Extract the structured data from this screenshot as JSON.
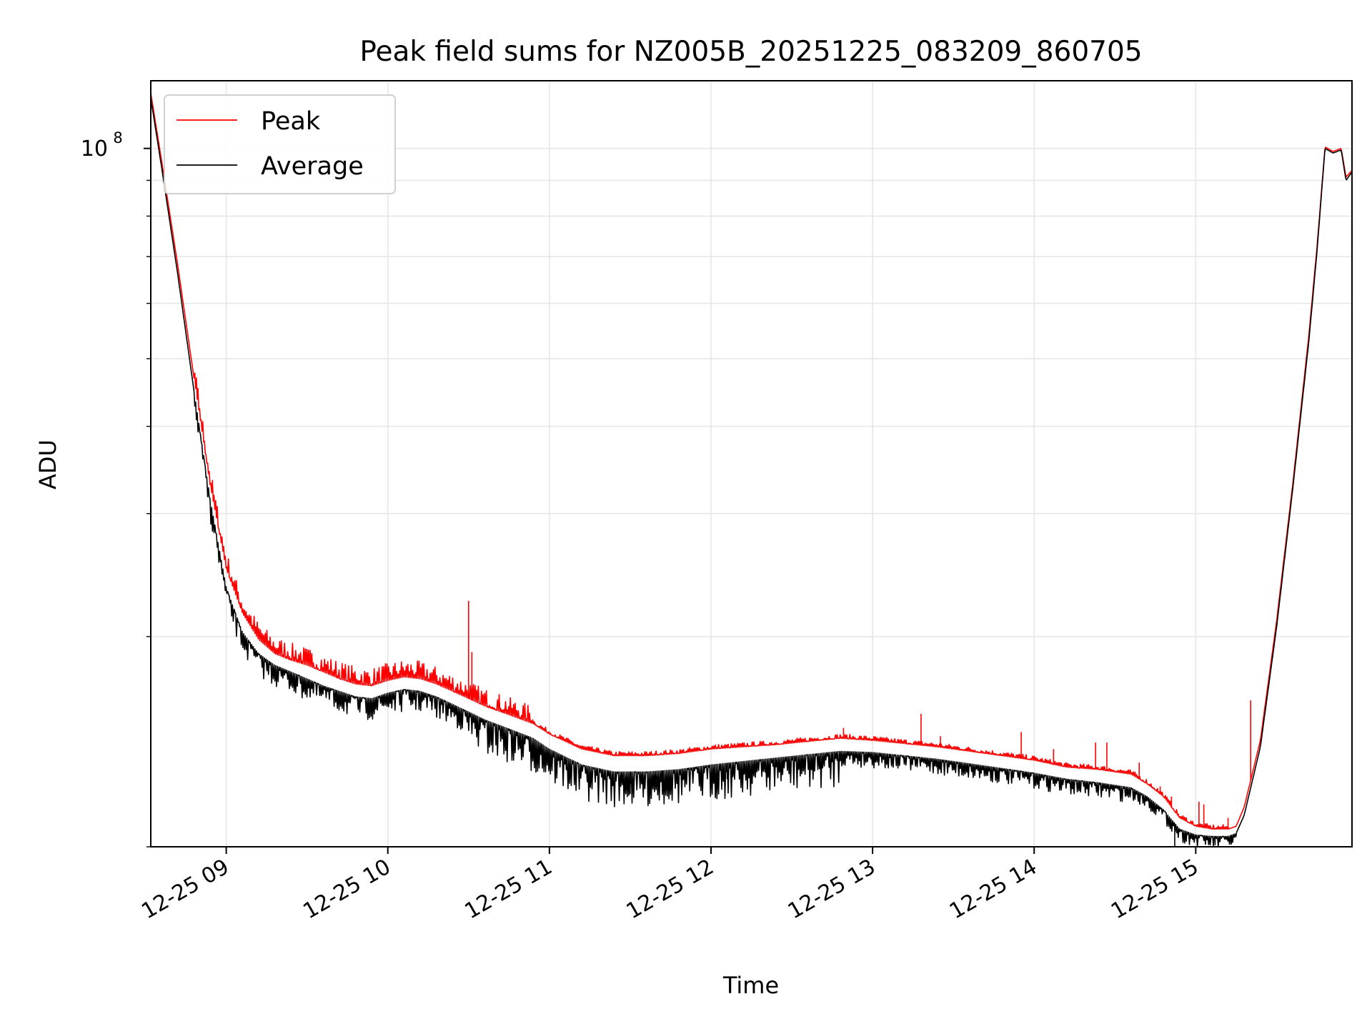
{
  "chart_data": {
    "type": "line",
    "title": "Peak field sums for NZ005B_20251225_083209_860705",
    "xlabel": "Time",
    "ylabel": "ADU",
    "yscale": "log",
    "xlim": [
      "2025-12-25 08:32",
      "2025-12-25 15:58"
    ],
    "ylim": [
      10000000,
      125000000
    ],
    "grid": true,
    "legend_position": "top-left",
    "x_ticks": [
      "12-25 09",
      "12-25 10",
      "12-25 11",
      "12-25 12",
      "12-25 13",
      "12-25 14",
      "12-25 15"
    ],
    "y_ticks": [
      {
        "label": "10",
        "exponent": "8",
        "value": 100000000
      }
    ],
    "legend": [
      {
        "name": "Peak",
        "color": "#ff0000"
      },
      {
        "name": "Average",
        "color": "#000000"
      }
    ],
    "series": [
      {
        "name": "Peak",
        "color": "#ff0000",
        "x_hours": [
          8.533,
          8.6,
          8.7,
          8.8,
          8.9,
          9.0,
          9.1,
          9.2,
          9.3,
          9.4,
          9.5,
          9.6,
          9.7,
          9.8,
          9.9,
          10.0,
          10.1,
          10.2,
          10.3,
          10.4,
          10.5,
          10.6,
          10.7,
          10.8,
          10.9,
          11.0,
          11.2,
          11.4,
          11.6,
          11.8,
          12.0,
          12.2,
          12.4,
          12.6,
          12.8,
          13.0,
          13.2,
          13.4,
          13.6,
          13.8,
          14.0,
          14.2,
          14.4,
          14.6,
          14.7,
          14.8,
          14.9,
          15.0,
          15.1,
          15.2,
          15.25,
          15.3,
          15.4,
          15.5,
          15.6,
          15.7,
          15.75,
          15.8,
          15.85,
          15.9,
          15.93,
          15.967
        ],
        "values": [
          120000000,
          96000000,
          68000000,
          47000000,
          33000000,
          25000000,
          21600000,
          19800000,
          18900000,
          18500000,
          18200000,
          17800000,
          17400000,
          17100000,
          17000000,
          17300000,
          17500000,
          17400000,
          17100000,
          16700000,
          16300000,
          15900000,
          15600000,
          15300000,
          15000000,
          14500000,
          13800000,
          13500000,
          13500000,
          13600000,
          13800000,
          13900000,
          14000000,
          14150000,
          14300000,
          14200000,
          14050000,
          13900000,
          13700000,
          13500000,
          13300000,
          13000000,
          12900000,
          12700000,
          12300000,
          11800000,
          11000000,
          10700000,
          10600000,
          10600000,
          10700000,
          11400000,
          14200000,
          21000000,
          33000000,
          54000000,
          72000000,
          100500000,
          99000000,
          100000000,
          91000000,
          93000000
        ]
      },
      {
        "name": "Average",
        "color": "#000000",
        "x_hours": [
          8.533,
          8.6,
          8.7,
          8.8,
          8.9,
          9.0,
          9.1,
          9.2,
          9.3,
          9.4,
          9.5,
          9.6,
          9.7,
          9.8,
          9.9,
          10.0,
          10.1,
          10.2,
          10.3,
          10.4,
          10.5,
          10.6,
          10.7,
          10.8,
          10.9,
          11.0,
          11.2,
          11.4,
          11.6,
          11.8,
          12.0,
          12.2,
          12.4,
          12.6,
          12.8,
          13.0,
          13.2,
          13.4,
          13.6,
          13.8,
          14.0,
          14.2,
          14.4,
          14.6,
          14.7,
          14.8,
          14.9,
          15.0,
          15.1,
          15.2,
          15.25,
          15.3,
          15.4,
          15.5,
          15.6,
          15.7,
          15.75,
          15.8,
          15.85,
          15.9,
          15.93,
          15.967
        ],
        "values": [
          118000000,
          94000000,
          66000000,
          45000000,
          31500000,
          23500000,
          20300000,
          18900000,
          18200000,
          17800000,
          17400000,
          17000000,
          16700000,
          16400000,
          16300000,
          16600000,
          16800000,
          16700000,
          16400000,
          16000000,
          15600000,
          15200000,
          14900000,
          14600000,
          14300000,
          13800000,
          13100000,
          12800000,
          12800000,
          12900000,
          13100000,
          13250000,
          13400000,
          13550000,
          13700000,
          13650000,
          13500000,
          13350000,
          13150000,
          12950000,
          12750000,
          12500000,
          12350000,
          12150000,
          11800000,
          11300000,
          10600000,
          10400000,
          10350000,
          10350000,
          10450000,
          11100000,
          13900000,
          20600000,
          32500000,
          53000000,
          71000000,
          100000000,
          98500000,
          99500000,
          90000000,
          92500000
        ]
      }
    ],
    "spikes": {
      "peak": [
        {
          "x_hours": 10.5,
          "value": 22500000
        },
        {
          "x_hours": 10.52,
          "value": 19000000
        },
        {
          "x_hours": 12.82,
          "value": 14800000
        },
        {
          "x_hours": 13.3,
          "value": 15500000
        },
        {
          "x_hours": 13.42,
          "value": 14400000
        },
        {
          "x_hours": 13.92,
          "value": 14600000
        },
        {
          "x_hours": 14.12,
          "value": 13800000
        },
        {
          "x_hours": 14.38,
          "value": 14100000
        },
        {
          "x_hours": 14.45,
          "value": 14100000
        },
        {
          "x_hours": 14.65,
          "value": 13200000
        },
        {
          "x_hours": 14.78,
          "value": 12200000
        },
        {
          "x_hours": 14.85,
          "value": 11800000
        },
        {
          "x_hours": 15.02,
          "value": 11600000
        },
        {
          "x_hours": 15.05,
          "value": 11500000
        },
        {
          "x_hours": 15.2,
          "value": 11000000
        },
        {
          "x_hours": 15.34,
          "value": 16200000
        }
      ],
      "average_dips": [
        {
          "x_hours": 11.5,
          "value": 11900000
        },
        {
          "x_hours": 11.7,
          "value": 12000000
        },
        {
          "x_hours": 12.1,
          "value": 12500000
        },
        {
          "x_hours": 14.87,
          "value": 10000000
        },
        {
          "x_hours": 15.12,
          "value": 10050000
        },
        {
          "x_hours": 15.22,
          "value": 10100000
        }
      ]
    }
  }
}
